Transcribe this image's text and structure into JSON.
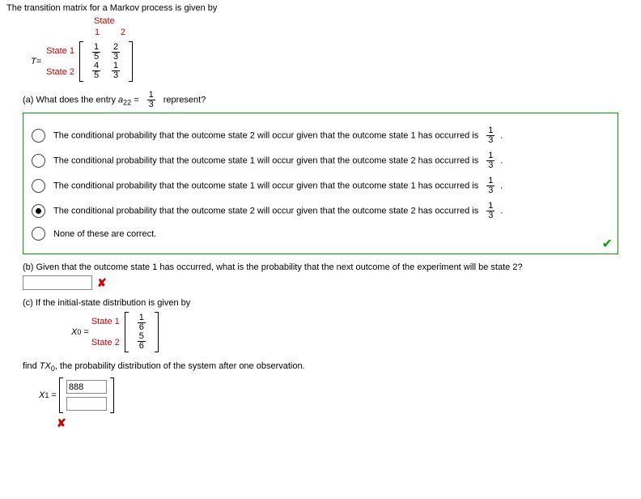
{
  "intro": "The transition matrix for a Markov process is given by",
  "T_label": "T=",
  "state_header": "State",
  "col_labels": [
    "1",
    "2"
  ],
  "row_labels": [
    "State 1",
    "State 2"
  ],
  "T": {
    "r1c1": {
      "n": "1",
      "d": "5"
    },
    "r1c2": {
      "n": "2",
      "d": "3"
    },
    "r2c1": {
      "n": "4",
      "d": "5"
    },
    "r2c2": {
      "n": "1",
      "d": "3"
    }
  },
  "partA": {
    "prompt_pre": "(a) What does the entry ",
    "sub": "a",
    "subnum": "22",
    "prompt_mid": " = ",
    "frac": {
      "n": "1",
      "d": "3"
    },
    "prompt_post": " represent?",
    "options": [
      {
        "text_pre": "The conditional probability that the outcome state 2 will occur given that the outcome state 1 has occurred is ",
        "frac": {
          "n": "1",
          "d": "3"
        },
        "text_post": ".",
        "selected": false
      },
      {
        "text_pre": "The conditional probability that the outcome state 1 will occur given that the outcome state 2 has occurred is ",
        "frac": {
          "n": "1",
          "d": "3"
        },
        "text_post": ".",
        "selected": false
      },
      {
        "text_pre": "The conditional probability that the outcome state 1 will occur given that the outcome state 1 has occurred is ",
        "frac": {
          "n": "1",
          "d": "3"
        },
        "text_post": ".",
        "selected": false
      },
      {
        "text_pre": "The conditional probability that the outcome state 2 will occur given that the outcome state 2 has occurred is ",
        "frac": {
          "n": "1",
          "d": "3"
        },
        "text_post": ".",
        "selected": true
      },
      {
        "text_pre": "None of these are correct.",
        "frac": null,
        "text_post": "",
        "selected": false
      }
    ],
    "correct": true
  },
  "partB": {
    "prompt": "(b) Given that the outcome state 1 has occurred, what is the probability that the next outcome of the experiment will be state 2?",
    "value": "",
    "wrong": true
  },
  "partC": {
    "prompt": "(c) If the initial-state distribution is given by",
    "X0_label": "X",
    "X0_sub": "0",
    "row_labels": [
      "State 1",
      "State 2"
    ],
    "vec": {
      "r1": {
        "n": "1",
        "d": "6"
      },
      "r2": {
        "n": "5",
        "d": "6"
      }
    },
    "after": "find ",
    "TX_i": "TX",
    "TX_sub": "0",
    "after2": ", the probability distribution of the system after one observation.",
    "X1": {
      "label": "X",
      "sub": "1",
      "v1": "888",
      "v2": ""
    },
    "wrong": true
  },
  "glyph": {
    "check": "✔",
    "cross": "✘"
  }
}
